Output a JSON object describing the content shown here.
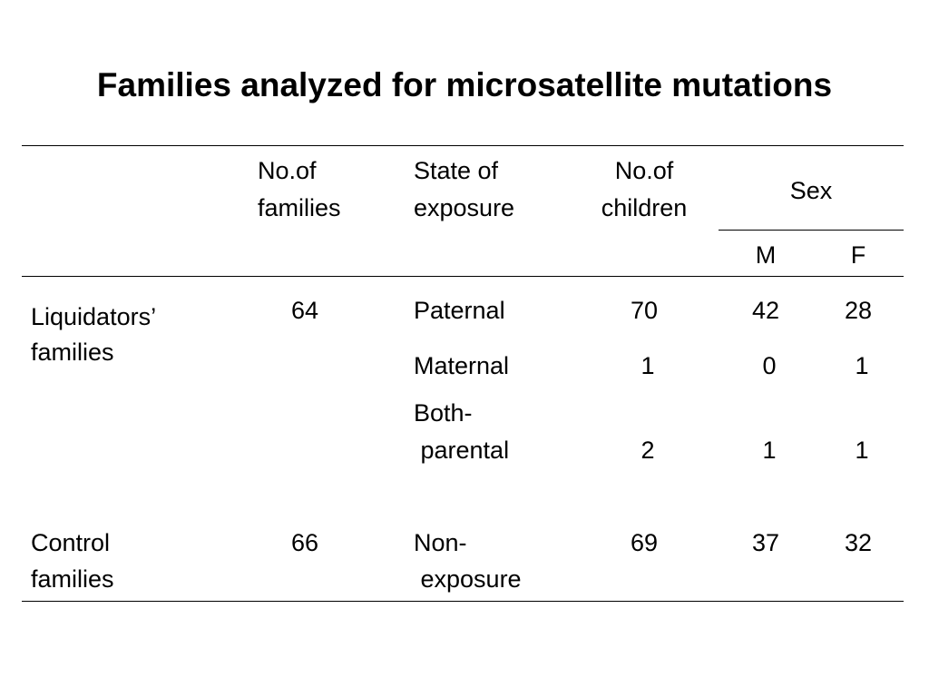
{
  "title": "Families analyzed for microsatellite mutations",
  "header": {
    "families_line1": "No.of",
    "families_line2": "families",
    "exposure_line1": "State of",
    "exposure_line2": "exposure",
    "children_line1": "No.of",
    "children_line2": "children",
    "sex": "Sex",
    "male": "M",
    "female": "F"
  },
  "rows": [
    {
      "group_line1": "Liquidators’",
      "group_line2": "families",
      "families": "64"
    },
    {
      "group_line1": "Control",
      "group_line2": "families",
      "families": "66"
    }
  ],
  "exposures": [
    {
      "state_line1": "Paternal",
      "state_line2": "",
      "children": "70",
      "m": "42",
      "f": "28"
    },
    {
      "state_line1": "Maternal",
      "state_line2": "",
      "children": "1",
      "m": "0",
      "f": "1"
    },
    {
      "state_line1": "Both-",
      "state_line2": " parental",
      "children": "2",
      "m": "1",
      "f": "1"
    },
    {
      "state_line1": "Non-",
      "state_line2": " exposure",
      "children": "69",
      "m": "37",
      "f": "32"
    }
  ]
}
